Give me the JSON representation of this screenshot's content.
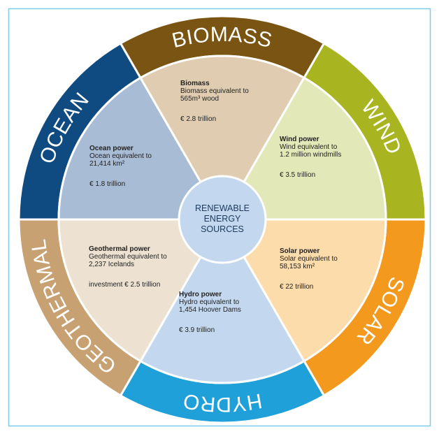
{
  "center": [
    "RENEWABLE",
    "ENERGY",
    "SOURCES"
  ],
  "segments": [
    {
      "label": "SOLAR",
      "title": "Solar power",
      "lines": [
        "Solar equivalent to",
        "58,153 km²"
      ],
      "value": "€ 22 trillion"
    },
    {
      "label": "HYDRO",
      "title": "Hydro power",
      "lines": [
        "Hydro equivalent to",
        "1,454 Hoover Dams"
      ],
      "value": "€ 3.9 trillion"
    },
    {
      "label": "GEOTHERMAL",
      "title": "Geothermal power",
      "lines": [
        "Geothermal equivalent to",
        "2,237 Icelands"
      ],
      "value": "investment € 2.5 trillion"
    },
    {
      "label": "OCEAN",
      "title": "Ocean power",
      "lines": [
        "Ocean equivalent to",
        "21,414 km²"
      ],
      "value": "€ 1.8 trillion"
    },
    {
      "label": "BIOMASS",
      "title": "Biomass",
      "lines": [
        "Biomass equivalent to",
        "565m³ wood"
      ],
      "value": "€ 2.8 trillion"
    },
    {
      "label": "WIND",
      "title": "Wind power",
      "lines": [
        "Wind equivalent to",
        "1.2 million windmills"
      ],
      "value": "€ 3.5 trillion"
    }
  ]
}
